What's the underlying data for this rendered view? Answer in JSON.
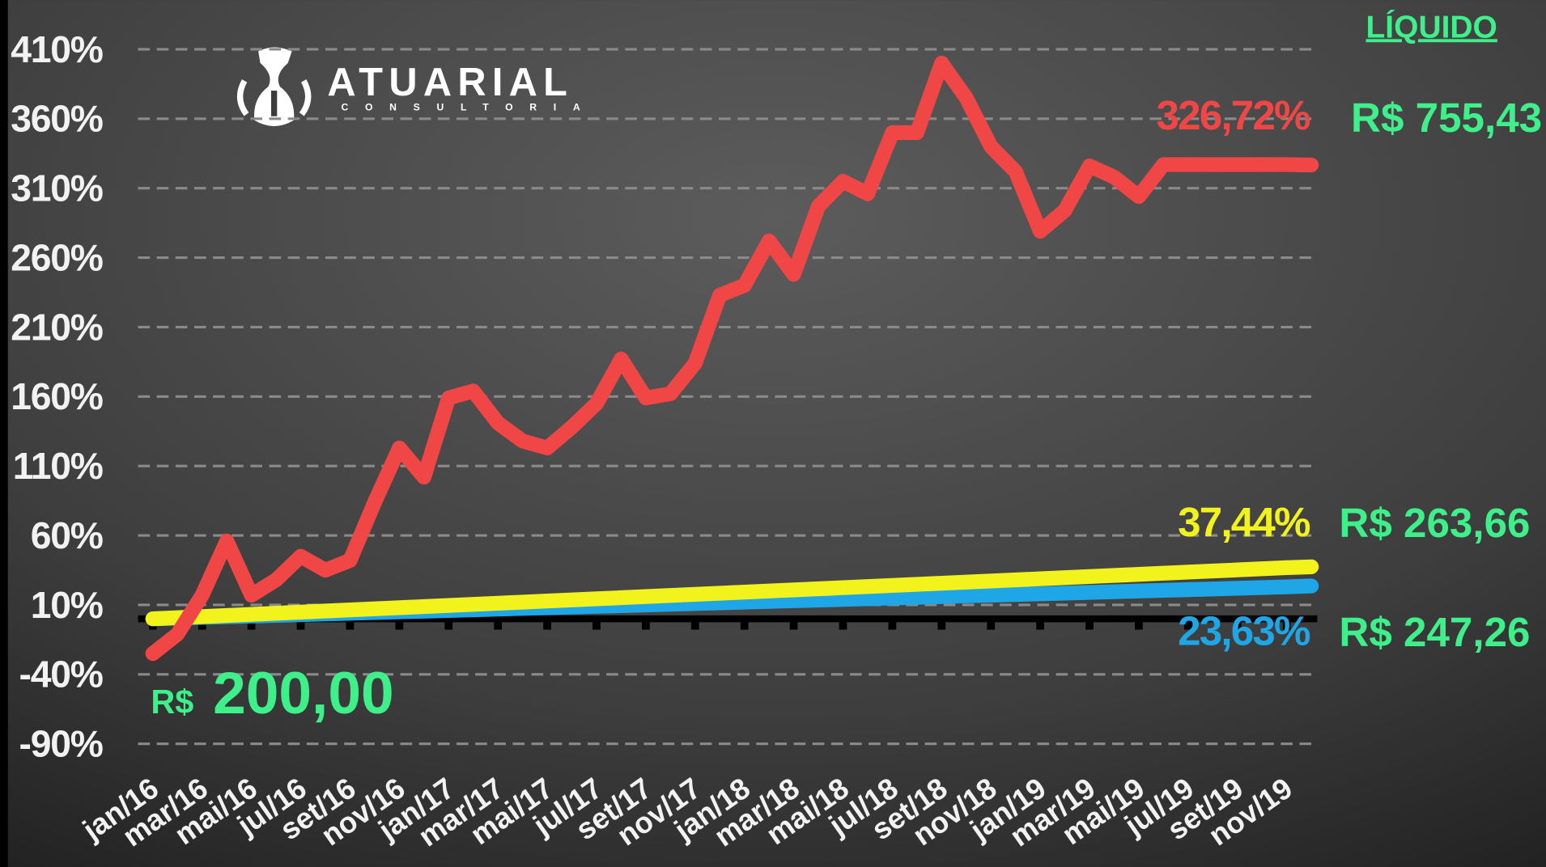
{
  "header": "LÍQUIDO",
  "logo": {
    "name": "ATUARIAL",
    "tagline": "CONSULTORIA"
  },
  "annotations": [
    "R$ 755,43",
    "R$ 263,66",
    "R$ 247,26"
  ],
  "start_label": {
    "currency": "R$",
    "amount": "200,00"
  },
  "chart_data": {
    "type": "line",
    "categories": [
      "jan/16",
      null,
      "mar/16",
      null,
      "mai/16",
      null,
      "jul/16",
      null,
      "set/16",
      null,
      "nov/16",
      null,
      "jan/17",
      null,
      "mar/17",
      null,
      "mai/17",
      null,
      "jul/17",
      null,
      "set/17",
      null,
      "nov/17",
      null,
      "jan/18",
      null,
      "mar/18",
      null,
      "mai/18",
      null,
      "jul/18",
      null,
      "set/18",
      null,
      "nov/18",
      null,
      "jan/19",
      null,
      "mar/19",
      null,
      "mai/19",
      null,
      "jul/19",
      null,
      "set/19",
      null,
      "nov/19",
      null
    ],
    "ylim": [
      -90,
      410
    ],
    "yticks": [
      {
        "value": -90,
        "label": "-90%"
      },
      {
        "value": -40,
        "label": "-40%"
      },
      {
        "value": 10,
        "label": "10%"
      },
      {
        "value": 60,
        "label": "60%"
      },
      {
        "value": 110,
        "label": "110%"
      },
      {
        "value": 160,
        "label": "160%"
      },
      {
        "value": 210,
        "label": "210%"
      },
      {
        "value": 260,
        "label": "260%"
      },
      {
        "value": 310,
        "label": "310%"
      },
      {
        "value": 360,
        "label": "360%"
      },
      {
        "value": 410,
        "label": "410%"
      }
    ],
    "grid": true,
    "series": [
      {
        "color": "#f04646",
        "values": [
          -25,
          -11,
          17,
          56,
          17,
          28,
          45,
          35,
          42,
          84,
          123,
          102,
          159,
          164,
          141,
          128,
          123,
          138,
          155,
          187,
          159,
          162,
          184,
          233,
          240,
          272,
          248,
          297,
          315,
          306,
          350,
          350,
          400,
          375,
          340,
          322,
          279,
          294,
          326,
          318,
          304,
          327,
          327,
          327,
          327,
          327,
          327,
          326.72
        ],
        "value_labels": [
          null,
          null,
          null,
          null,
          null,
          null,
          null,
          null,
          null,
          null,
          null,
          null,
          null,
          null,
          null,
          null,
          null,
          null,
          null,
          null,
          null,
          null,
          null,
          null,
          null,
          null,
          null,
          null,
          null,
          null,
          null,
          null,
          null,
          null,
          null,
          null,
          null,
          null,
          null,
          null,
          null,
          null,
          null,
          null,
          null,
          null,
          null,
          "326,72%"
        ]
      },
      {
        "color": "#f2f21c",
        "values": [
          0,
          0.8,
          1.6,
          2.4,
          3.2,
          4,
          4.8,
          5.6,
          6.4,
          7.2,
          8,
          8.8,
          9.6,
          10.4,
          11.2,
          12,
          12.8,
          13.6,
          14.4,
          15.2,
          16,
          16.8,
          17.6,
          18.4,
          19.2,
          20,
          20.8,
          21.6,
          22.4,
          23.2,
          24,
          24.8,
          25.6,
          26.4,
          27.2,
          28,
          28.8,
          29.6,
          30.4,
          31.2,
          32,
          32.8,
          33.6,
          34.4,
          35.2,
          36,
          36.8,
          37.44
        ],
        "value_labels": [
          null,
          null,
          null,
          null,
          null,
          null,
          null,
          null,
          null,
          null,
          null,
          null,
          null,
          null,
          null,
          null,
          null,
          null,
          null,
          null,
          null,
          null,
          null,
          null,
          null,
          null,
          null,
          null,
          null,
          null,
          null,
          null,
          null,
          null,
          null,
          null,
          null,
          null,
          null,
          null,
          null,
          null,
          null,
          null,
          null,
          null,
          null,
          "37,44%"
        ]
      },
      {
        "color": "#1ea6e6",
        "values": [
          0,
          0.5,
          1,
          1.5,
          2,
          2.5,
          3,
          3.5,
          4,
          4.5,
          5,
          5.5,
          6,
          6.5,
          7,
          7.5,
          8,
          8.5,
          9,
          9.5,
          10,
          10.5,
          11,
          11.5,
          12,
          12.5,
          13,
          13.5,
          14,
          14.5,
          15,
          15.5,
          16,
          16.5,
          17,
          17.5,
          18,
          18.5,
          19,
          19.5,
          20,
          20.5,
          21,
          21.5,
          22,
          22.5,
          23,
          23.63
        ],
        "value_labels": [
          null,
          null,
          null,
          null,
          null,
          null,
          null,
          null,
          null,
          null,
          null,
          null,
          null,
          null,
          null,
          null,
          null,
          null,
          null,
          null,
          null,
          null,
          null,
          null,
          null,
          null,
          null,
          null,
          null,
          null,
          null,
          null,
          null,
          null,
          null,
          null,
          null,
          null,
          null,
          null,
          null,
          null,
          null,
          null,
          null,
          null,
          null,
          "23,63%"
        ]
      }
    ]
  }
}
